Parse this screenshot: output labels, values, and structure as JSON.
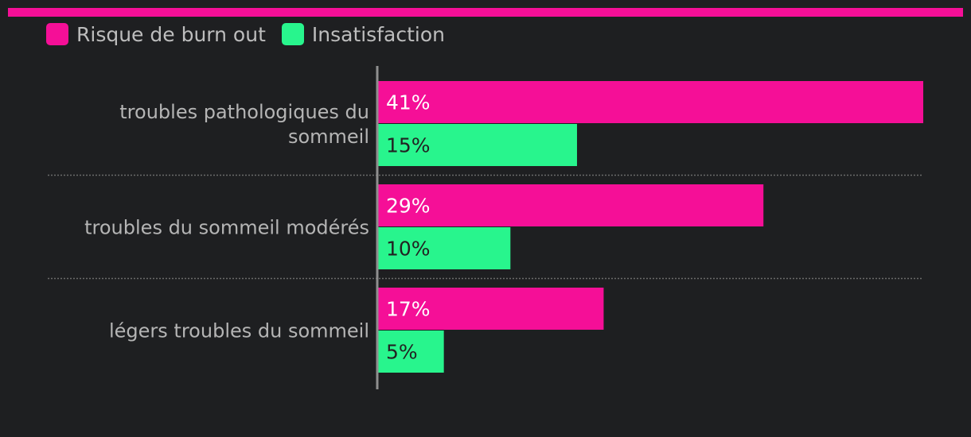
{
  "colors": {
    "background": "#1e1f21",
    "accent": "#f50f97",
    "series_1": "#f50f97",
    "series_2": "#28f58d",
    "label_on_series_1": "#ffffff",
    "label_on_series_2": "#222222"
  },
  "chart_data": {
    "type": "bar",
    "orientation": "horizontal",
    "categories": [
      "troubles pathologiques du sommeil",
      "troubles du sommeil modérés",
      "légers troubles du sommeil"
    ],
    "series": [
      {
        "name": "Risque de burn out",
        "values": [
          41,
          29,
          17
        ],
        "labels": [
          "41%",
          "29%",
          "17%"
        ]
      },
      {
        "name": "Insatisfaction",
        "values": [
          15,
          10,
          5
        ],
        "labels": [
          "15%",
          "10%",
          "5%"
        ]
      }
    ],
    "unit": "%",
    "xlim": [
      0,
      41
    ],
    "legend_position": "top-left",
    "grid": false
  }
}
